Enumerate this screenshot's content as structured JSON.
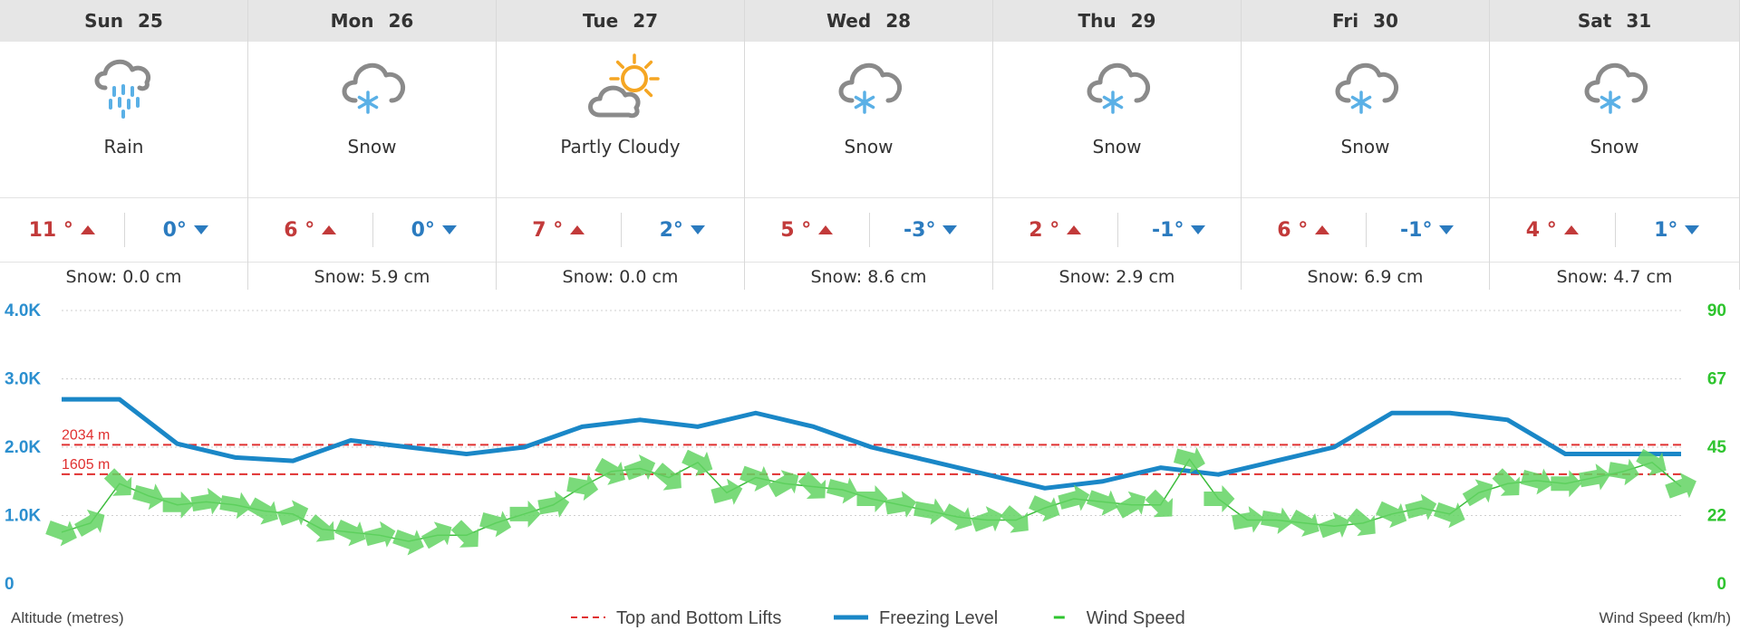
{
  "days": [
    {
      "dow": "Sun",
      "date": "25",
      "icon": "rain-cloud-icon",
      "condition": "Rain",
      "max": "11 °",
      "min": "0°",
      "snow": "Snow: 0.0 cm"
    },
    {
      "dow": "Mon",
      "date": "26",
      "icon": "snow-cloud-icon",
      "condition": "Snow",
      "max": "6 °",
      "min": "0°",
      "snow": "Snow: 5.9 cm"
    },
    {
      "dow": "Tue",
      "date": "27",
      "icon": "partly-cloudy-icon",
      "condition": "Partly Cloudy",
      "max": "7 °",
      "min": "2°",
      "snow": "Snow: 0.0 cm"
    },
    {
      "dow": "Wed",
      "date": "28",
      "icon": "snow-cloud-icon",
      "condition": "Snow",
      "max": "5 °",
      "min": "-3°",
      "snow": "Snow: 8.6 cm"
    },
    {
      "dow": "Thu",
      "date": "29",
      "icon": "snow-cloud-icon",
      "condition": "Snow",
      "max": "2 °",
      "min": "-1°",
      "snow": "Snow: 2.9 cm"
    },
    {
      "dow": "Fri",
      "date": "30",
      "icon": "snow-cloud-icon",
      "condition": "Snow",
      "max": "6 °",
      "min": "-1°",
      "snow": "Snow: 6.9 cm"
    },
    {
      "dow": "Sat",
      "date": "31",
      "icon": "snow-cloud-icon",
      "condition": "Snow",
      "max": "4 °",
      "min": "1°",
      "snow": "Snow: 4.7 cm"
    }
  ],
  "chart_data": {
    "type": "line",
    "xlabel": "",
    "ylabel": "Altitude (metres)",
    "y2label": "Wind Speed (km/h)",
    "ylim": [
      0,
      4000
    ],
    "y_ticks": [
      "0",
      "1.0K",
      "2.0K",
      "3.0K",
      "4.0K"
    ],
    "y2lim": [
      0,
      90
    ],
    "y2_ticks": [
      "0",
      "22",
      "45",
      "67",
      "90"
    ],
    "grid": true,
    "legend": {
      "position": "bottom-center",
      "items": [
        {
          "label": "Top and Bottom Lifts",
          "color": "#e03030",
          "style": "dashed"
        },
        {
          "label": "Freezing Level",
          "color": "#1a87c7",
          "style": "solid"
        },
        {
          "label": "Wind Speed",
          "color": "#2ec42e",
          "style": "solid"
        }
      ]
    },
    "lifts": [
      {
        "label": "2034 m",
        "value": 2034
      },
      {
        "label": "1605 m",
        "value": 1605
      }
    ],
    "series": [
      {
        "name": "Freezing Level",
        "color": "#1a87c7",
        "x_day": [
          0,
          0.25,
          0.5,
          0.75,
          1,
          1.25,
          1.5,
          1.75,
          2,
          2.25,
          2.5,
          2.75,
          3,
          3.25,
          3.5,
          3.75,
          4,
          4.25,
          4.5,
          4.75,
          5,
          5.25,
          5.5,
          5.75,
          6,
          6.25,
          6.5,
          6.75,
          7
        ],
        "values": [
          2700,
          2700,
          2050,
          1850,
          1800,
          2100,
          2000,
          1900,
          2000,
          2300,
          2400,
          2300,
          2500,
          2300,
          2000,
          1800,
          1600,
          1400,
          1500,
          1700,
          1600,
          1800,
          2000,
          2500,
          2500,
          2400,
          1900,
          1900,
          1900
        ]
      },
      {
        "name": "Wind Speed",
        "color": "#2ec42e",
        "x_day": [
          0,
          0.125,
          0.25,
          0.375,
          0.5,
          0.625,
          0.75,
          0.875,
          1,
          1.125,
          1.25,
          1.375,
          1.5,
          1.625,
          1.75,
          1.875,
          2,
          2.125,
          2.25,
          2.375,
          2.5,
          2.625,
          2.75,
          2.875,
          3,
          3.125,
          3.25,
          3.375,
          3.5,
          3.625,
          3.75,
          3.875,
          4,
          4.125,
          4.25,
          4.375,
          4.5,
          4.625,
          4.75,
          4.875,
          5,
          5.125,
          5.25,
          5.375,
          5.5,
          5.625,
          5.75,
          5.875,
          6,
          6.125,
          6.25,
          6.375,
          6.5,
          6.625,
          6.75,
          6.875,
          7
        ],
        "values": [
          17,
          20,
          33,
          29,
          26,
          27,
          26,
          24,
          23,
          18,
          17,
          16,
          14,
          16,
          16,
          20,
          23,
          26,
          32,
          37,
          38,
          35,
          40,
          30,
          35,
          33,
          32,
          31,
          28,
          26,
          24,
          22,
          21,
          21,
          25,
          28,
          27,
          26,
          26,
          41,
          28,
          21,
          21,
          20,
          19,
          20,
          23,
          25,
          23,
          30,
          33,
          34,
          33,
          35,
          37,
          40,
          32
        ]
      }
    ]
  }
}
